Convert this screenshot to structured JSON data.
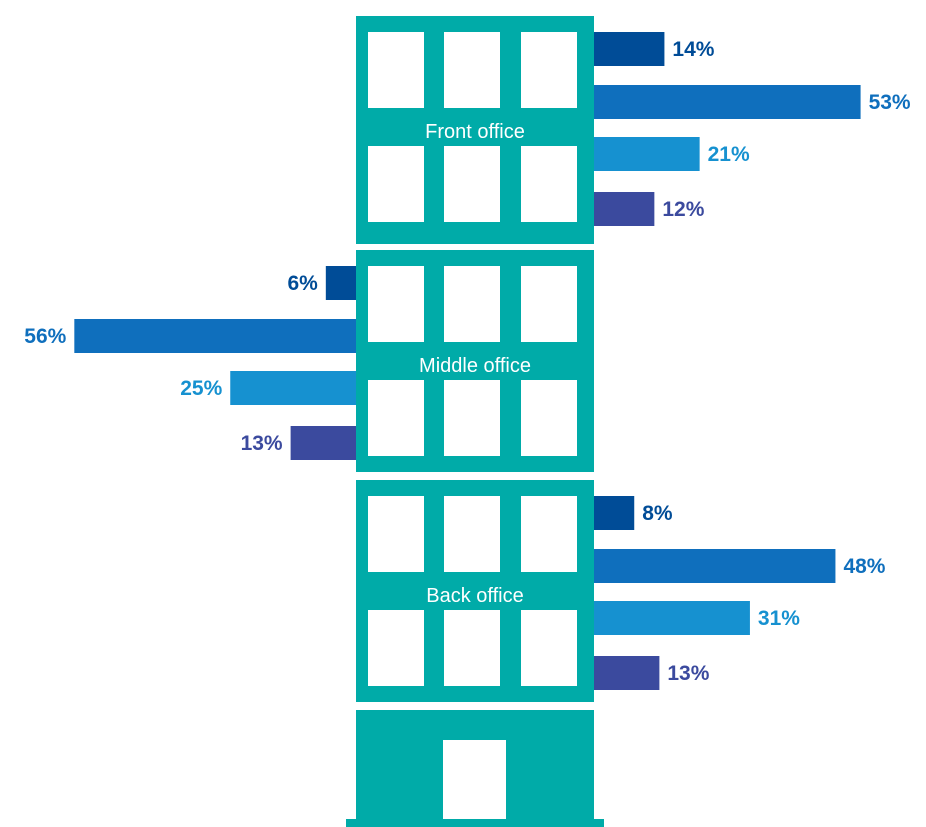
{
  "chart_data": {
    "type": "bar",
    "series_colors": [
      "#004C97",
      "#0F6FBD",
      "#1691D0",
      "#3B4A9E"
    ],
    "office_color": "#00ABA8",
    "groups": [
      {
        "name": "Front office",
        "values": [
          14,
          53,
          21,
          12
        ],
        "labels": [
          "14%",
          "53%",
          "21%",
          "12%"
        ],
        "side": "right"
      },
      {
        "name": "Middle office",
        "values": [
          6,
          56,
          25,
          13
        ],
        "labels": [
          "6%",
          "56%",
          "25%",
          "13%"
        ],
        "side": "left"
      },
      {
        "name": "Back office",
        "values": [
          8,
          48,
          31,
          13
        ],
        "labels": [
          "8%",
          "48%",
          "31%",
          "13%"
        ],
        "side": "right"
      }
    ]
  }
}
